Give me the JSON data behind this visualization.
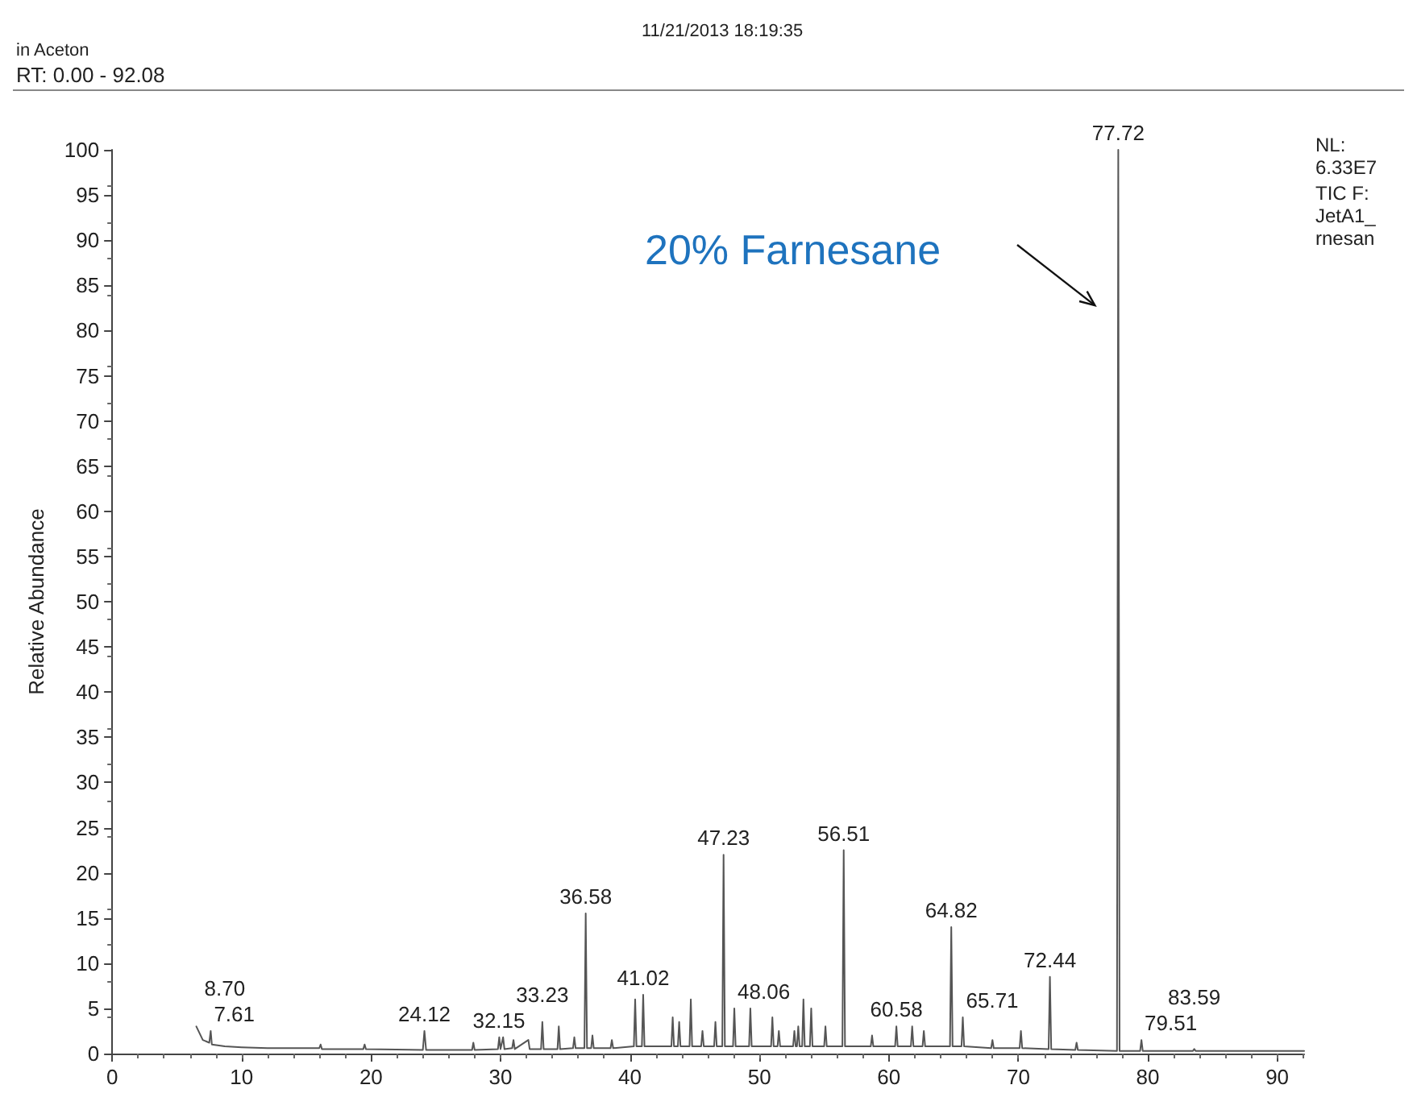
{
  "chart_data": {
    "type": "line",
    "xlabel": null,
    "ylabel": "Relative Abundance",
    "annotations": [
      "in Aceton",
      "11/21/2013 18:19:35",
      "RT: 0.00 - 92.08",
      "NL:",
      "6.33E7",
      "TIC F:",
      "JetA1_",
      "rnesan",
      "20% Farnesane",
      {
        "text": "7.61",
        "x": 7.61,
        "y": 2.5
      },
      {
        "text": "8.70",
        "x": 8.7,
        "y": 0.8
      },
      {
        "text": "24.12",
        "x": 24.12,
        "y": 2.5
      },
      {
        "text": "32.15",
        "x": 32.15,
        "y": 1.5
      },
      {
        "text": "33.23",
        "x": 33.23,
        "y": 3.5
      },
      {
        "text": "36.58",
        "x": 36.58,
        "y": 15.5
      },
      {
        "text": "41.02",
        "x": 41.02,
        "y": 6.5
      },
      {
        "text": "47.23",
        "x": 47.23,
        "y": 22
      },
      {
        "text": "48.06",
        "x": 48.06,
        "y": 5
      },
      {
        "text": "56.51",
        "x": 56.51,
        "y": 22.5
      },
      {
        "text": "60.58",
        "x": 60.58,
        "y": 3
      },
      {
        "text": "64.82",
        "x": 64.82,
        "y": 14
      },
      {
        "text": "65.71",
        "x": 65.71,
        "y": 4
      },
      {
        "text": "72.44",
        "x": 72.44,
        "y": 8.5
      },
      {
        "text": "77.72",
        "x": 77.72,
        "y": 100
      },
      {
        "text": "79.51",
        "x": 79.51,
        "y": 1.5
      },
      {
        "text": "83.59",
        "x": 83.59,
        "y": 0.5
      }
    ],
    "x": [
      6.5,
      7.0,
      7.5,
      7.61,
      7.7,
      8.7,
      10,
      12,
      16,
      16.1,
      16.2,
      19.4,
      19.5,
      19.6,
      24.0,
      24.12,
      24.25,
      26,
      27.8,
      27.9,
      28,
      29.8,
      29.9,
      30.0,
      30.2,
      30.3,
      30.9,
      31.0,
      31.1,
      32.15,
      32.25,
      33.13,
      33.23,
      33.33,
      34.4,
      34.5,
      34.6,
      35.6,
      35.7,
      35.8,
      36.48,
      36.58,
      36.68,
      37.0,
      37.1,
      37.2,
      38.5,
      38.6,
      38.7,
      40.3,
      40.4,
      40.5,
      40.92,
      41.02,
      41.12,
      43.2,
      43.3,
      43.4,
      43.7,
      43.8,
      43.9,
      44.6,
      44.7,
      44.8,
      45.5,
      45.6,
      45.7,
      46.5,
      46.6,
      46.7,
      47.13,
      47.23,
      47.33,
      47.96,
      48.06,
      48.16,
      49.2,
      49.3,
      49.4,
      50.9,
      51.0,
      51.1,
      51.4,
      51.5,
      51.6,
      52.6,
      52.7,
      52.8,
      52.9,
      53.0,
      53.1,
      53.3,
      53.4,
      53.5,
      53.9,
      54.0,
      54.1,
      55.0,
      55.1,
      55.2,
      56.41,
      56.51,
      56.61,
      58.6,
      58.7,
      58.8,
      60.48,
      60.58,
      60.68,
      61.7,
      61.8,
      61.9,
      62.6,
      62.7,
      62.8,
      64.72,
      64.82,
      64.92,
      65.61,
      65.71,
      65.81,
      67.9,
      68.0,
      68.1,
      70.1,
      70.2,
      70.3,
      72.34,
      72.44,
      72.54,
      74.4,
      74.5,
      74.6,
      77.62,
      77.72,
      77.82,
      79.41,
      79.51,
      79.61,
      83.49,
      83.59,
      83.69,
      92.08
    ],
    "values": [
      3.0,
      1.5,
      1.2,
      2.5,
      1.0,
      0.8,
      0.7,
      0.6,
      0.6,
      1.0,
      0.5,
      0.5,
      1.0,
      0.5,
      0.4,
      2.5,
      0.4,
      0.4,
      0.4,
      1.2,
      0.4,
      0.5,
      1.8,
      0.5,
      1.8,
      0.5,
      0.6,
      1.5,
      0.5,
      1.5,
      0.5,
      0.5,
      3.5,
      0.5,
      0.5,
      3.0,
      0.5,
      0.6,
      1.8,
      0.6,
      0.6,
      15.5,
      0.6,
      0.6,
      2.0,
      0.6,
      0.6,
      1.5,
      0.6,
      0.8,
      6.0,
      0.8,
      0.8,
      6.5,
      0.8,
      0.8,
      4.0,
      0.8,
      0.8,
      3.5,
      0.8,
      0.8,
      6.0,
      0.8,
      0.8,
      2.5,
      0.8,
      0.8,
      3.5,
      0.8,
      0.8,
      22.0,
      0.8,
      0.8,
      5.0,
      0.8,
      0.8,
      5.0,
      0.8,
      0.8,
      4.0,
      0.8,
      0.8,
      2.5,
      0.8,
      0.8,
      2.5,
      0.8,
      0.8,
      3.0,
      0.8,
      0.8,
      6.0,
      0.8,
      0.8,
      5.0,
      0.8,
      0.8,
      3.0,
      0.8,
      0.8,
      22.5,
      0.8,
      0.8,
      2.0,
      0.8,
      0.8,
      3.0,
      0.8,
      0.8,
      3.0,
      0.8,
      0.8,
      2.5,
      0.8,
      0.8,
      14.0,
      0.8,
      0.8,
      4.0,
      0.8,
      0.6,
      1.5,
      0.6,
      0.6,
      2.5,
      0.6,
      0.5,
      8.5,
      0.5,
      0.4,
      1.2,
      0.4,
      0.3,
      100,
      0.3,
      0.3,
      1.5,
      0.3,
      0.3,
      0.5,
      0.3,
      0.3
    ],
    "color": "#555555",
    "xlim": [
      0,
      92.08
    ],
    "xticks": [
      0,
      10,
      20,
      30,
      40,
      50,
      60,
      70,
      80,
      90
    ],
    "ylim": [
      0,
      100
    ],
    "yticks": [
      0,
      5,
      10,
      15,
      20,
      25,
      30,
      35,
      40,
      45,
      50,
      55,
      60,
      65,
      70,
      75,
      80,
      85,
      90,
      95,
      100
    ],
    "grid": false,
    "marker": "none",
    "line_style": "solid"
  }
}
